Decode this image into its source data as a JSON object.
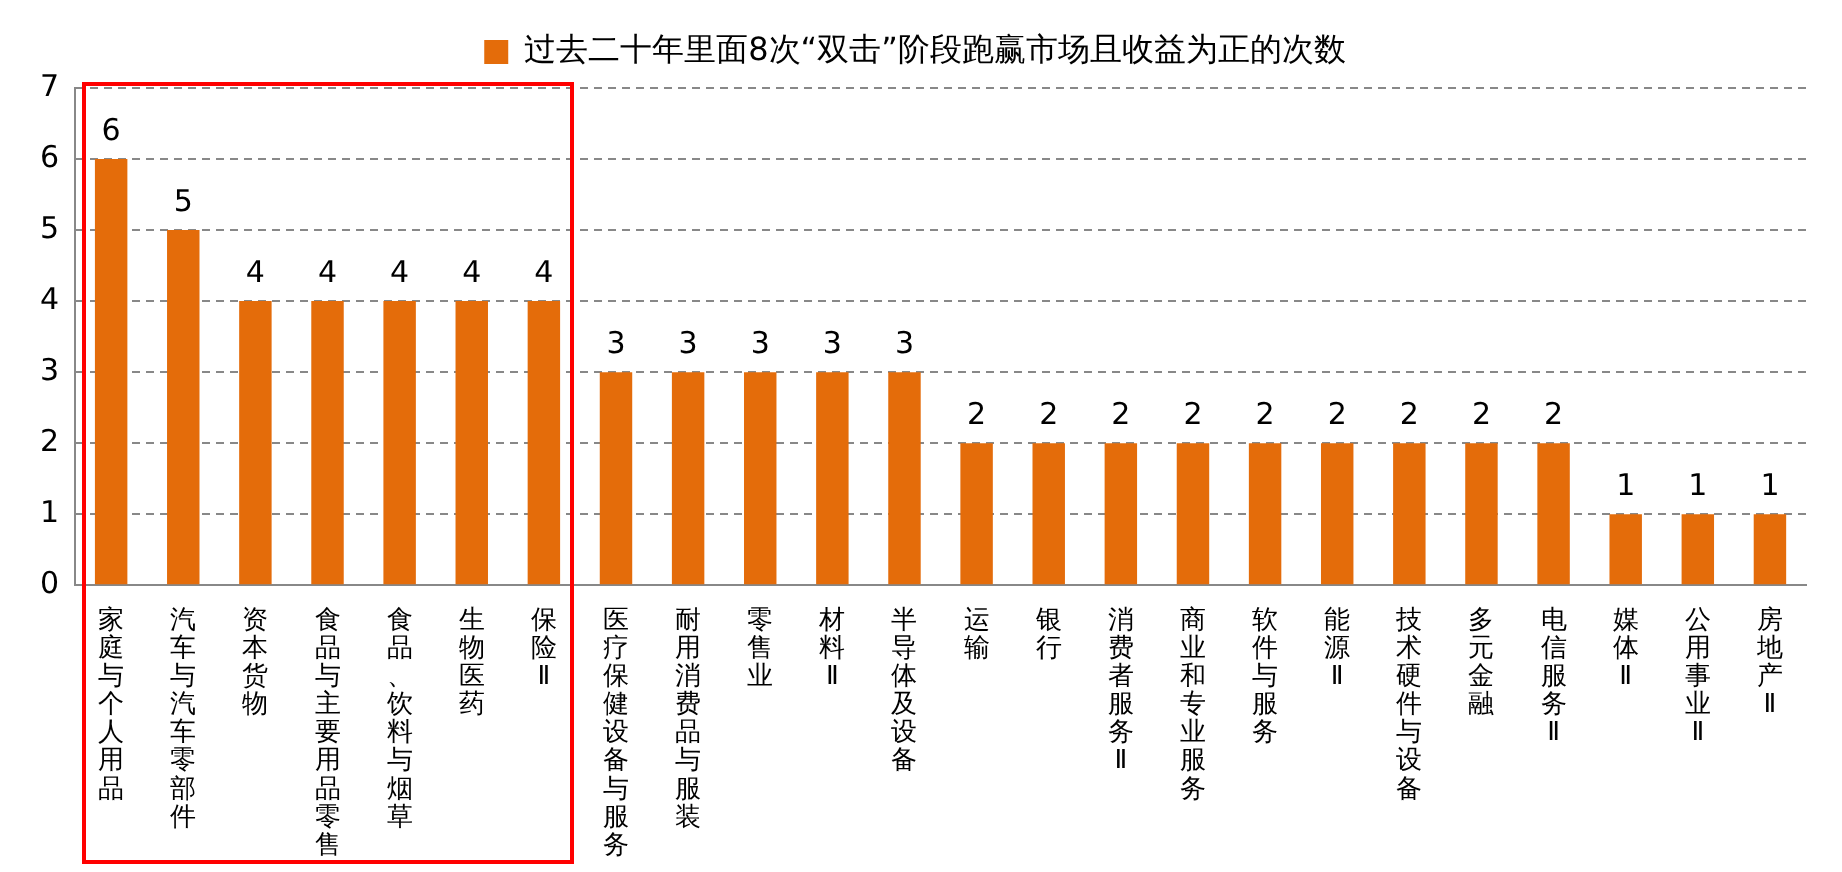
{
  "chart_data": {
    "type": "bar",
    "categories": [
      "家庭与个人用品",
      "汽车与汽车零部件",
      "资本货物",
      "食品与主要用品零售",
      "食品、饮料与烟草",
      "生物医药",
      "保险Ⅱ",
      "医疗保健设备与服务",
      "耐用消费品与服装",
      "零售业",
      "材料Ⅱ",
      "半导体及设备",
      "运输",
      "银行",
      "消费者服务Ⅱ",
      "商业和专业服务",
      "软件与服务",
      "能源Ⅱ",
      "技术硬件与设备",
      "多元金融",
      "电信服务Ⅱ",
      "媒体Ⅱ",
      "公用事业Ⅱ",
      "房地产Ⅱ"
    ],
    "series": [
      {
        "name": "过去二十年里面8次“双击”阶段跑赢市场且收益为正的次数",
        "color": "#e46c0a",
        "values": [
          6,
          5,
          4,
          4,
          4,
          4,
          4,
          3,
          3,
          3,
          3,
          3,
          2,
          2,
          2,
          2,
          2,
          2,
          2,
          2,
          2,
          1,
          1,
          1
        ]
      }
    ],
    "ylim": [
      0,
      7
    ],
    "yticks": [
      0,
      1,
      2,
      3,
      4,
      5,
      6,
      7
    ],
    "grid": "y",
    "legend": "top",
    "data_labels": true
  }
}
